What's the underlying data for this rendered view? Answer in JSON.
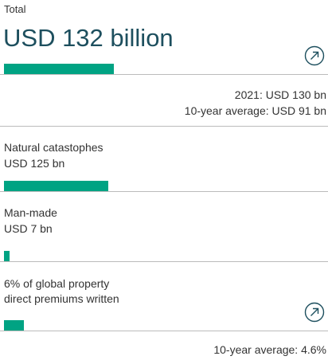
{
  "total": {
    "label": "Total",
    "headline": "USD 132 billion",
    "comparison": [
      "2021: USD 130 bn",
      "10-year average: USD 91 bn"
    ]
  },
  "items": [
    {
      "lines": [
        "Natural catastophes",
        "USD 125 bn"
      ]
    },
    {
      "lines": [
        "Man-made",
        "USD 7 bn"
      ]
    },
    {
      "lines": [
        "6% of global property",
        "direct premiums written"
      ],
      "note": "10-year average: 4.6%"
    }
  ]
}
